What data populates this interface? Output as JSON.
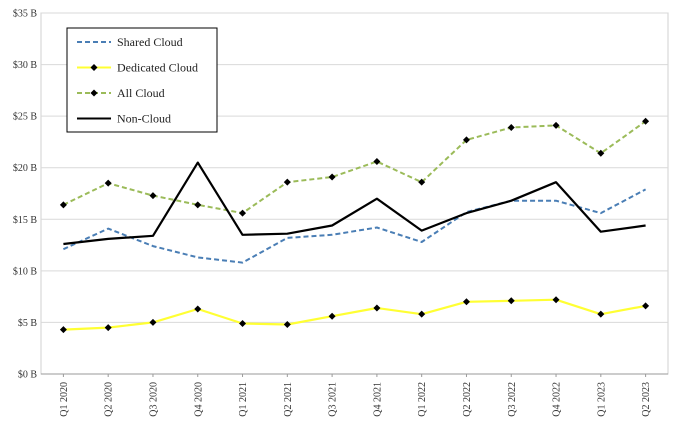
{
  "chart_data": {
    "type": "line",
    "title": "",
    "xlabel": "",
    "ylabel": "",
    "categories": [
      "Q1 2020",
      "Q2 2020",
      "Q3 2020",
      "Q4 2020",
      "Q1 2021",
      "Q2 2021",
      "Q3 2021",
      "Q4 2021",
      "Q1 2022",
      "Q2 2022",
      "Q3 2022",
      "Q4 2022",
      "Q1 2023",
      "Q2 2023"
    ],
    "ylim": [
      0,
      35
    ],
    "yticks": [
      0,
      5,
      10,
      15,
      20,
      25,
      30,
      35
    ],
    "ytick_labels": [
      "$0 B",
      "$5 B",
      "$10 B",
      "$15 B",
      "$20 B",
      "$25 B",
      "$30 B",
      "$35 B"
    ],
    "grid": "horizontal",
    "legend_position": "top-left",
    "series": [
      {
        "name": "Shared Cloud",
        "color": "#4a7eb5",
        "style": "dashed",
        "markers": false,
        "values": [
          12.1,
          14.1,
          12.4,
          11.3,
          10.8,
          13.2,
          13.5,
          14.2,
          12.8,
          15.7,
          16.8,
          16.8,
          15.6,
          17.9
        ]
      },
      {
        "name": "Dedicated Cloud",
        "color": "#ffff33",
        "style": "solid",
        "markers": true,
        "values": [
          4.3,
          4.5,
          5.0,
          6.3,
          4.9,
          4.8,
          5.6,
          6.4,
          5.8,
          7.0,
          7.1,
          7.2,
          5.8,
          6.6
        ]
      },
      {
        "name": "All Cloud",
        "color": "#9bbb59",
        "style": "dashed",
        "markers": true,
        "values": [
          16.4,
          18.5,
          17.3,
          16.4,
          15.6,
          18.6,
          19.1,
          20.6,
          18.6,
          22.7,
          23.9,
          24.1,
          21.4,
          24.5
        ]
      },
      {
        "name": "Non-Cloud",
        "color": "#000000",
        "style": "solid",
        "markers": false,
        "values": [
          12.6,
          13.1,
          13.4,
          20.5,
          13.5,
          13.6,
          14.4,
          17.0,
          13.9,
          15.6,
          16.8,
          18.6,
          13.8,
          14.4
        ]
      }
    ]
  }
}
